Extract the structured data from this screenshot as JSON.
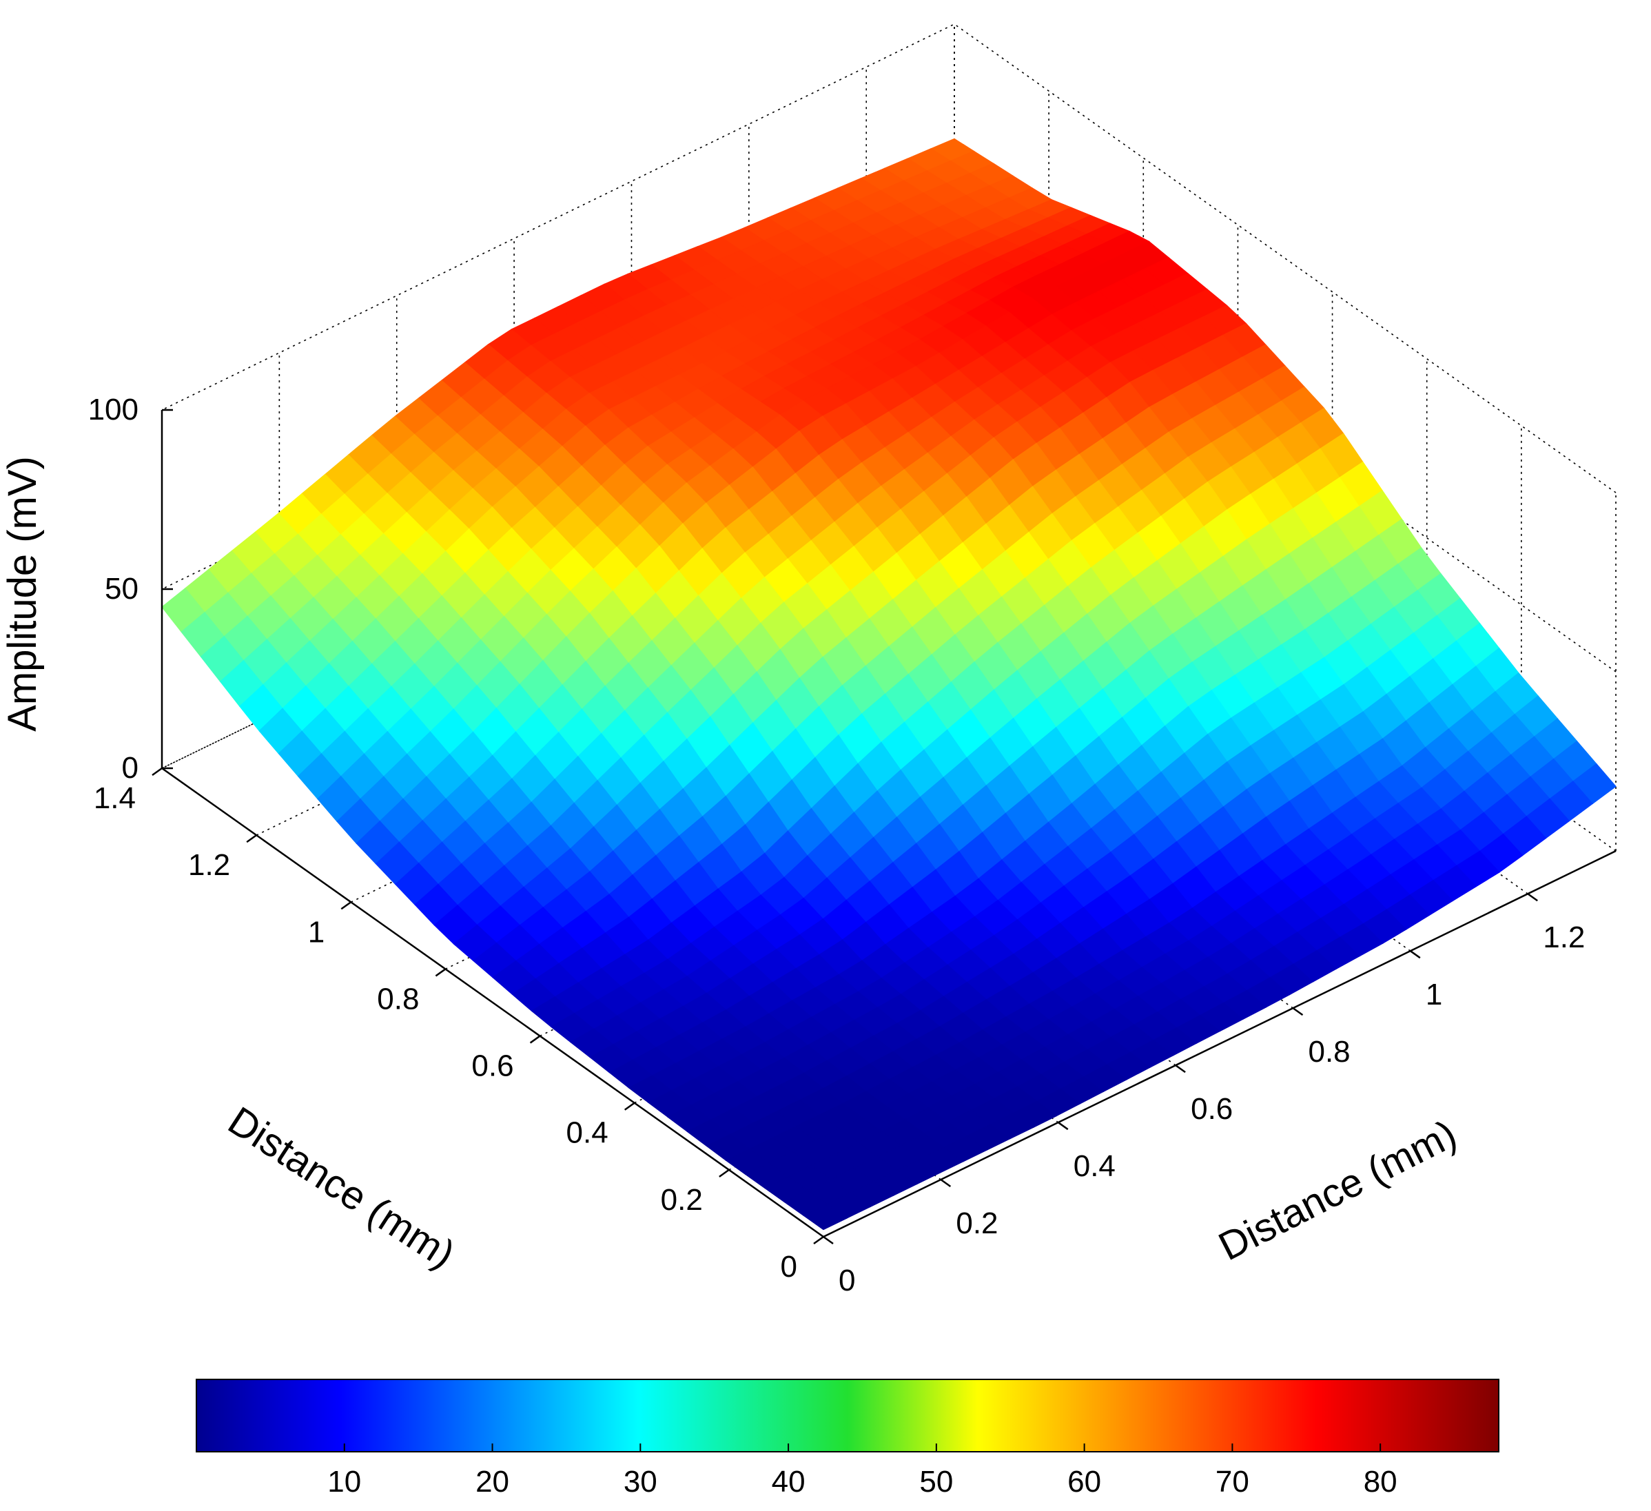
{
  "chart_data": {
    "type": "surface3d",
    "title": "",
    "zlabel": "Amplitude (mV)",
    "xlabel": "Distance (mm)",
    "ylabel": "Distance (mm)",
    "xlim": [
      0,
      1.4
    ],
    "ylim": [
      0,
      1.35
    ],
    "zlim": [
      0,
      100
    ],
    "x_ticks": [
      "0",
      "0.2",
      "0.4",
      "0.6",
      "0.8",
      "1",
      "1.2",
      "1.4"
    ],
    "y_ticks": [
      "0",
      "0.2",
      "0.4",
      "0.6",
      "0.8",
      "1",
      "1.2"
    ],
    "z_ticks": [
      "0",
      "50",
      "100"
    ],
    "grid": true,
    "colormap": "jet",
    "colorbar": {
      "orientation": "horizontal",
      "placement": "bottom",
      "range": [
        0,
        88
      ],
      "ticks": [
        "10",
        "20",
        "30",
        "40",
        "50",
        "60",
        "70",
        "80"
      ]
    },
    "x": [
      0,
      0.2,
      0.4,
      0.6,
      0.8,
      1.0,
      1.2,
      1.4
    ],
    "y": [
      0,
      0.2,
      0.4,
      0.6,
      0.8,
      1.0,
      1.2,
      1.35
    ],
    "z": [
      [
        2,
        2,
        3,
        5,
        9,
        18,
        30,
        45
      ],
      [
        2,
        2,
        4,
        8,
        20,
        33,
        45,
        55
      ],
      [
        2,
        3,
        6,
        15,
        35,
        50,
        60,
        66
      ],
      [
        3,
        5,
        12,
        30,
        50,
        65,
        72,
        75
      ],
      [
        4,
        8,
        22,
        42,
        60,
        74,
        72,
        75
      ],
      [
        6,
        14,
        33,
        52,
        70,
        75,
        73,
        72
      ],
      [
        10,
        20,
        38,
        60,
        75,
        78,
        72,
        70
      ],
      [
        18,
        30,
        45,
        65,
        75,
        78,
        70,
        68
      ]
    ]
  }
}
